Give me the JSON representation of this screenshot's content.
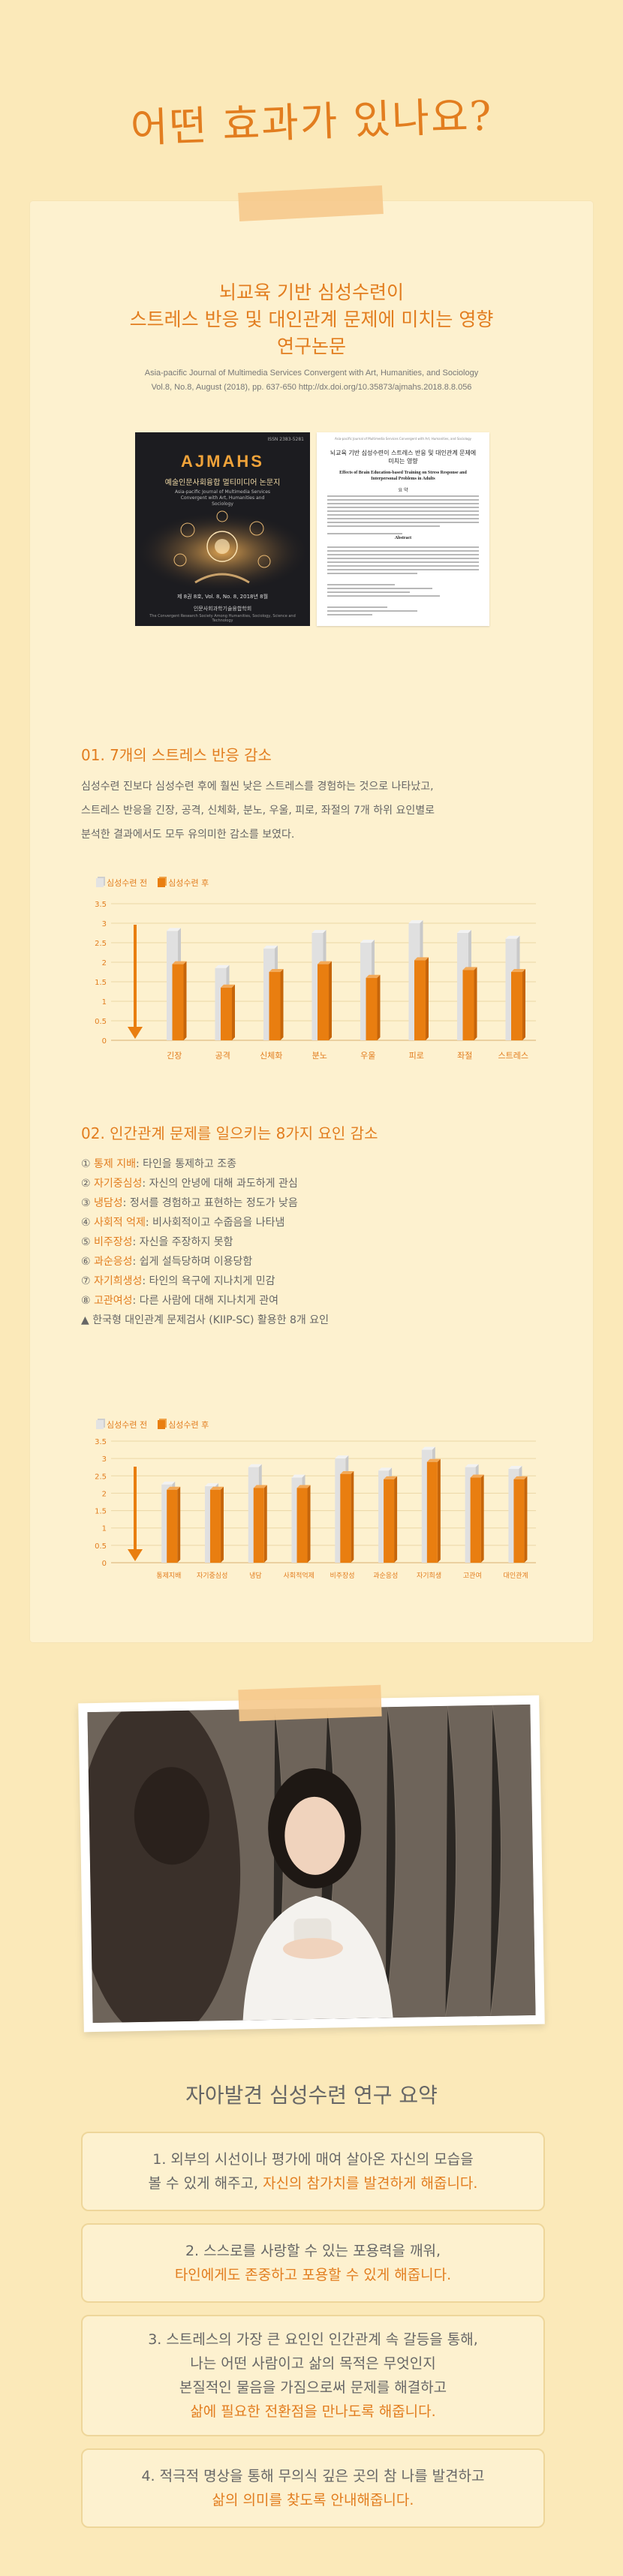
{
  "hero": {
    "title": "어떤 효과가 있나요?"
  },
  "paper": {
    "title_lines": [
      "뇌교육 기반 심성수련이",
      "스트레스 반응 및 대인관계 문제에 미치는 영향",
      "연구논문"
    ],
    "ref_line1": "Asia-pacific Journal of Multimedia Services Convergent with Art, Humanities, and Sociology",
    "ref_line2": "Vol.8, No.8, August (2018), pp. 637-650   http://dx.doi.org/10.35873/ajmahs.2018.8.8.056"
  },
  "cover": {
    "issn": "ISSN 2383-5281",
    "brand": "AJMAHS",
    "kr_title": "예술인문사회융합 멀티미디어 논문지",
    "en_title": "Asia-pacific Journal of Multimedia Services Convergent with Art, Humanities and Sociology",
    "issue": "제 8권 8호, Vol. 8, No. 8,  2018년 8월",
    "publisher": "인문사회과학기술융합학회",
    "publisher_en": "The Convergent Research Society Among Humanities, Sociology, Science and Technology"
  },
  "article": {
    "head": "Asia-pacific Journal of Multimedia Services Convergent with Art, Humanities, and Sociology",
    "title_kr": "뇌교육 기반 심성수련이 스트레스 반응 및 대인관계 문제에 미치는 영향",
    "title_en": "Effects of Brain Education-based Training on Stress Response and Interpersonal Problems in Adults",
    "abstract_heading": "요 약",
    "abstract_en_heading": "Abstract"
  },
  "section1": {
    "title": "01. 7개의 스트레스 반응 감소",
    "body": [
      "심성수련 진보다 심성수련 후에 훨씬 낮은 스트레스를 경험하는 것으로 나타났고,",
      "스트레스 반응을 긴장, 공격, 신체화, 분노, 우울, 피로, 좌절의 7개 하위 요인별로",
      "분석한 결과에서도 모두 유의미한 감소를 보였다."
    ]
  },
  "section2": {
    "title": "02. 인간관계 문제를 일으키는 8가지 요인 감소",
    "factors": [
      {
        "num": "①",
        "name": "통제 지배",
        "desc": ": 타인을 통제하고 조종"
      },
      {
        "num": "②",
        "name": "자기중심성",
        "desc": ": 자신의 안녕에 대해 과도하게 관심"
      },
      {
        "num": "③",
        "name": "냉담성",
        "desc": ": 정서를 경험하고 표현하는 정도가 낮음"
      },
      {
        "num": "④",
        "name": "사회적 억제",
        "desc": ": 비사회적이고 수줍음을 나타냄"
      },
      {
        "num": "⑤",
        "name": "비주장성",
        "desc": ": 자신을 주장하지 못함"
      },
      {
        "num": "⑥",
        "name": "과순응성",
        "desc": ": 쉽게 설득당하며 이용당함"
      },
      {
        "num": "⑦",
        "name": "자기희생성",
        "desc": ": 타인의 욕구에 지나치게 민감"
      },
      {
        "num": "⑧",
        "name": "고관여성",
        "desc": ": 다른 사람에 대해 지나치게 관여"
      }
    ],
    "note": "▲ 한국형 대인관계 문제검사 (KIIP-SC) 활용한 8개 요인"
  },
  "summary": {
    "title": "자아발견 심성수련 연구 요약",
    "items": [
      {
        "lines": [
          {
            "plain": "1. 외부의 시선이나 평가에 매여 살아온 자신의 모습을",
            "hl": ""
          },
          {
            "plain": "볼 수 있게 해주고, ",
            "hl": "자신의 참가치를 발견하게 해줍니다."
          }
        ]
      },
      {
        "lines": [
          {
            "plain": "2. 스스로를 사랑할 수 있는 포용력을 깨워,",
            "hl": ""
          },
          {
            "plain": "",
            "hl": "타인에게도 존중하고 포용할 수 있게 해줍니다."
          }
        ]
      },
      {
        "lines": [
          {
            "plain": "3. 스트레스의 가장 큰 요인인 인간관계 속 갈등을 통해,",
            "hl": ""
          },
          {
            "plain": "나는 어떤 사람이고 삶의 목적은 무엇인지",
            "hl": ""
          },
          {
            "plain": "본질적인 물음을 가짐으로써 문제를 해결하고",
            "hl": ""
          },
          {
            "plain": "",
            "hl": "삶에 필요한 전환점을 만나도록 해줍니다."
          }
        ]
      },
      {
        "lines": [
          {
            "plain": "4. 적극적 명상을 통해 무의식 깊은 곳의 참 나를 발견하고",
            "hl": ""
          },
          {
            "plain": "",
            "hl": "삶의 의미를 찾도록 안내해줍니다."
          }
        ]
      }
    ]
  },
  "chart_data": [
    {
      "type": "bar",
      "title": "",
      "categories": [
        "긴장",
        "공격",
        "신체화",
        "분노",
        "우울",
        "피로",
        "좌절",
        "스트레스"
      ],
      "series": [
        {
          "name": "심성수련 전",
          "values": [
            2.8,
            1.85,
            2.35,
            2.75,
            2.5,
            3.0,
            2.75,
            2.6
          ]
        },
        {
          "name": "심성수련 후",
          "values": [
            1.95,
            1.35,
            1.75,
            1.95,
            1.6,
            2.05,
            1.8,
            1.75
          ]
        }
      ],
      "yticks": [
        0,
        0.5,
        1,
        1.5,
        2,
        2.5,
        3,
        3.5
      ],
      "ylim": [
        0,
        3.5
      ],
      "grid": true,
      "legend": "top-left",
      "colors": {
        "before": "#e3e3e3",
        "after": "#e97e10"
      }
    },
    {
      "type": "bar",
      "title": "",
      "categories": [
        "통제지배",
        "자기중심성",
        "냉담",
        "사회적억제",
        "비주장성",
        "과순응성",
        "자기희생",
        "고관여",
        "대인관계"
      ],
      "series": [
        {
          "name": "심성수련 전",
          "values": [
            2.25,
            2.2,
            2.75,
            2.45,
            3.0,
            2.65,
            3.25,
            2.75,
            2.7
          ]
        },
        {
          "name": "심성수련 후",
          "values": [
            2.1,
            2.1,
            2.15,
            2.15,
            2.55,
            2.4,
            2.9,
            2.45,
            2.4
          ]
        }
      ],
      "yticks": [
        0,
        0.5,
        1,
        1.5,
        2,
        2.5,
        3,
        3.5
      ],
      "ylim": [
        0,
        3.5
      ],
      "grid": true,
      "legend": "top-left",
      "colors": {
        "before": "#e3e3e3",
        "after": "#e97e10"
      }
    }
  ]
}
